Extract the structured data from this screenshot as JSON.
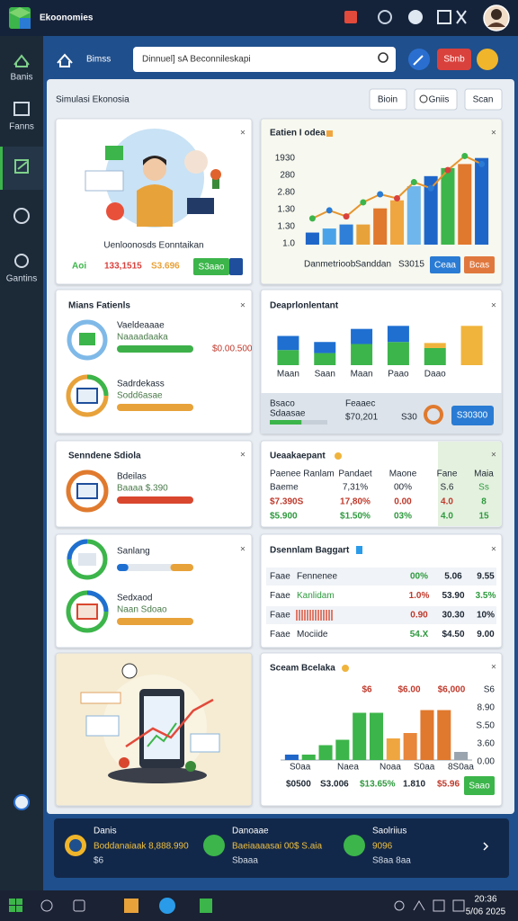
{
  "app": {
    "title": "Ekoonomies"
  },
  "sidebar": {
    "items": [
      "Banis",
      "Fanns",
      "Gantins"
    ]
  },
  "toolbar": {
    "home": "Bimss",
    "search": "Dinnuel] sA Beconnileskapi",
    "action": "Sbnb"
  },
  "page": {
    "title": "Simulasi Ekonosia",
    "buttons": [
      "Bioin",
      "Gniis",
      "Scan"
    ]
  },
  "profile_card": {
    "caption": "Uenloonosds Eonntaikan",
    "stats": [
      "Aoi",
      "133,1515",
      "S3.696"
    ],
    "button": "S3aao"
  },
  "trend_card": {
    "title": "Eatien I odea",
    "axis_labels": [
      "1930",
      "280",
      "2.80",
      "1.30",
      "1.30",
      "1.0"
    ],
    "ylim": [
      0,
      100
    ],
    "bars": {
      "values": [
        12,
        16,
        20,
        20,
        36,
        44,
        58,
        68,
        76,
        80,
        86
      ],
      "colors": [
        "#1f66c9",
        "#4aa3e8",
        "#2f7fd8",
        "#e8a23a",
        "#e0782e",
        "#f0a640",
        "#6fb6ec",
        "#1f66c9",
        "#3cb54a",
        "#e0782e",
        "#1f66c9"
      ]
    },
    "line": {
      "color": "#e6952e",
      "values": [
        26,
        34,
        28,
        42,
        50,
        46,
        62,
        56,
        74,
        88,
        80
      ]
    },
    "labels": [
      "Danmetrioob",
      "Sanddan",
      "S3015"
    ],
    "buttons": [
      "Ceaa",
      "Bcas"
    ]
  },
  "funds_card": {
    "title": "Mians Fatienls",
    "items": [
      {
        "title": "Vaeldeaaae",
        "subtitle": "Naaaadaaka",
        "value": "$0.00.500",
        "progress": 100,
        "color": "#3db04a"
      },
      {
        "title": "Sadrdekass",
        "subtitle": "Sodd6asae",
        "progress": 100,
        "color": "#e8a23a"
      }
    ]
  },
  "dept_card": {
    "title": "Deaprlonlentant",
    "ylim": [
      0,
      100
    ],
    "categories": [
      "Maan",
      "Saan",
      "Maan",
      "Paao",
      "Daao",
      null
    ],
    "series": [
      {
        "color": "#3cb54a",
        "values": [
          30,
          24,
          42,
          46,
          34,
          0
        ]
      },
      {
        "color": "#1f6fd1",
        "values": [
          28,
          22,
          30,
          32,
          0,
          0
        ]
      },
      {
        "color": "#f0b43c",
        "values": [
          0,
          0,
          0,
          0,
          10,
          78
        ]
      }
    ]
  },
  "summary_strip": {
    "left": [
      "Bsaco",
      "Sdaasae"
    ],
    "progress": 55,
    "middle": [
      "Feaaec",
      "$70,201"
    ],
    "note": "S30",
    "button": "S30300"
  },
  "schedule_card": {
    "title": "Senndene Sdiola",
    "items": [
      {
        "title": "Bdeilas",
        "subtitle": "Baaaa $.390",
        "progress": 100,
        "color": "#d9472f"
      }
    ]
  },
  "market_card": {
    "title": "Ueaakaepant",
    "header": [
      "Paenee Ranlam",
      "Pandaet",
      "Maone",
      "Fane",
      "Maia"
    ],
    "rows": [
      [
        "Baeme",
        "7,31%",
        "00%",
        "S.6",
        "Ss"
      ],
      [
        "$7.390S",
        "17,80%",
        "0.00",
        "4.0",
        "8"
      ],
      [
        "$5.900",
        "$1.50%",
        "03%",
        "4.0",
        "15"
      ]
    ]
  },
  "saving_card": {
    "title": "Sanlang",
    "bar": {
      "start": 15,
      "end": 30
    },
    "items": [
      {
        "title": "Sedxaod",
        "subtitle": "Naan Sdoao",
        "progress": 100,
        "color": "#e8a23a"
      }
    ]
  },
  "budget_card": {
    "title": "Dsennlam Baggart",
    "rows": [
      {
        "label": "Faae",
        "name": "Fennenee",
        "values": [
          "00%",
          "5.06",
          "9.55"
        ]
      },
      {
        "label": "Faae",
        "name": "Kanlidam",
        "values": [
          "1.0%",
          "53.90",
          "3.5%"
        ]
      },
      {
        "label": "Faae",
        "values": [
          "0.90",
          "30.30",
          "10%"
        ]
      },
      {
        "label": "Faae",
        "name": "Mociide",
        "values": [
          "54.X",
          "$4.50",
          "9.00"
        ]
      }
    ]
  },
  "scan_card": {
    "title": "Sceam Bcelaka",
    "top_labels": [
      "$6",
      "$6.00",
      "$6,000"
    ],
    "axis_labels": [
      "S6",
      "8.90",
      "S.50",
      "3.60",
      "0.00"
    ],
    "ylim": [
      0,
      100
    ],
    "bars": {
      "values": [
        8,
        8,
        22,
        30,
        70,
        70,
        32,
        40,
        74,
        74,
        12
      ],
      "colors": [
        "#1f66c9",
        "#3cb54a",
        "#3cb54a",
        "#3cb54a",
        "#3cb54a",
        "#3cb54a",
        "#f0a640",
        "#e8863a",
        "#e0782e",
        "#e0782e",
        "#9aa4ae"
      ]
    },
    "labels": [
      "S0aa",
      "Naea",
      "Noaa",
      "S0aa",
      "8S0aa"
    ],
    "values_row": [
      "$0500",
      "S3.006",
      "$13.65%",
      "1.810",
      "$5.96"
    ],
    "button": "Saao"
  },
  "footer": {
    "items": [
      {
        "title": "Danis",
        "line1": "Boddanaiaak 8,888.990",
        "line2": "$6"
      },
      {
        "title": "Danoaae",
        "line1": "Baeiaaaasai 00$ S.aia",
        "line2": "Sbaaa"
      },
      {
        "title": "Saolriius",
        "line1": "9096",
        "line2": "S8aa 8aa"
      }
    ]
  },
  "taskbar": {
    "clock": [
      "20:36",
      "5/06 2025"
    ]
  }
}
